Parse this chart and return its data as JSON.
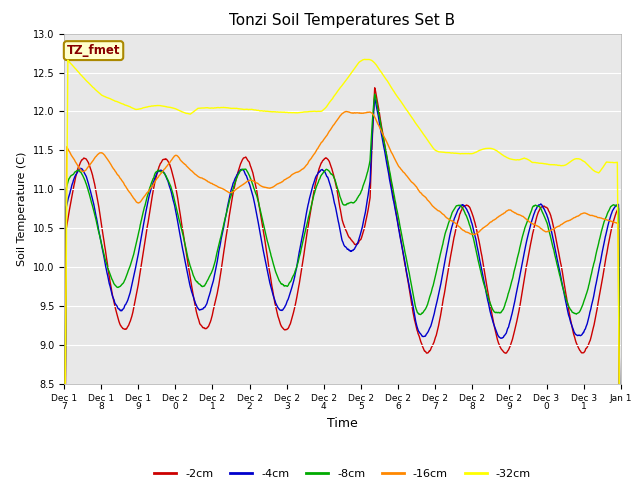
{
  "title": "Tonzi Soil Temperatures Set B",
  "xlabel": "Time",
  "ylabel": "Soil Temperature (C)",
  "ylim": [
    8.5,
    13.0
  ],
  "yticks": [
    8.5,
    9.0,
    9.5,
    10.0,
    10.5,
    11.0,
    11.5,
    12.0,
    12.5,
    13.0
  ],
  "colors": {
    "-2cm": "#cc0000",
    "-4cm": "#0000cc",
    "-8cm": "#00aa00",
    "-16cm": "#ff8800",
    "-32cm": "#ffff00"
  },
  "legend_label": "TZ_fmet",
  "legend_box_color": "#ffffcc",
  "legend_box_edge": "#aa8800",
  "tick_labels": [
    "Dec 1\n7",
    "Dec 1\n8",
    "Dec 1\n9",
    "Dec 2\n0",
    "Dec 2\n1",
    "Dec 2\n2",
    "Dec 2\n3",
    "Dec 2\n4",
    "Dec 2\n5",
    "Dec 2\n6",
    "Dec 2\n7",
    "Dec 2\n8",
    "Dec 2\n9",
    "Dec 3\n0",
    "Dec 3\n1",
    "Jan 1"
  ],
  "fig_width": 6.4,
  "fig_height": 4.8,
  "dpi": 100
}
